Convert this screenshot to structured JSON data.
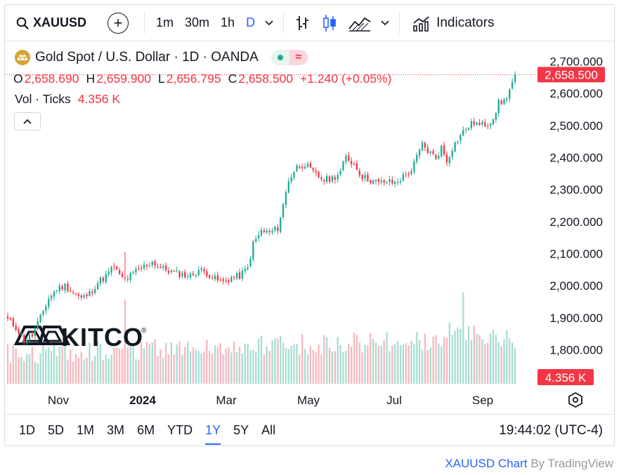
{
  "toolbar": {
    "symbol": "XAUUSD",
    "add_icon": "plus-icon",
    "intervals": [
      "1m",
      "30m",
      "1h",
      "D"
    ],
    "active_interval": "D",
    "indicators_label": "Indicators"
  },
  "legend": {
    "title": "Gold Spot / U.S. Dollar · 1D · OANDA",
    "open_label": "O",
    "open": "2,658.690",
    "high_label": "H",
    "high": "2,659.900",
    "low_label": "L",
    "low": "2,656.795",
    "close_label": "C",
    "close": "2,658.500",
    "change": "+1.240 (+0.05%)",
    "vol_label": "Vol · Ticks",
    "vol_value": "4.356 K"
  },
  "colors": {
    "up": "#22ab94",
    "down": "#f23645",
    "up_vol": "#a8ddd2",
    "down_vol": "#f7b8be",
    "accent": "#2962ff"
  },
  "watermark": "KITCO",
  "ranges": [
    "1D",
    "5D",
    "1M",
    "3M",
    "6M",
    "YTD",
    "1Y",
    "5Y",
    "All"
  ],
  "active_range": "1Y",
  "clock": "19:44:02 (UTC-4)",
  "footer": {
    "link": "XAUUSD Chart",
    "by": "By TradingView"
  },
  "chart_data": {
    "type": "candlestick",
    "title": "Gold Spot / U.S. Dollar · 1D · OANDA",
    "x_tick_labels": [
      "Nov",
      "2024",
      "Mar",
      "May",
      "Jul",
      "Sep"
    ],
    "y_tick_labels": [
      "2,700.000",
      "2,600.000",
      "2,500.000",
      "2,400.000",
      "2,300.000",
      "2,200.000",
      "2,100.000",
      "2,000.000",
      "1,900.000",
      "1,800.000"
    ],
    "ylim": [
      1720,
      2760
    ],
    "last_price_label": "2,658.500",
    "last_volume_label": "4.356 K",
    "close_anchors": [
      [
        0,
        1895
      ],
      [
        3,
        1870
      ],
      [
        6,
        1830
      ],
      [
        9,
        1845
      ],
      [
        12,
        1900
      ],
      [
        15,
        1960
      ],
      [
        18,
        1990
      ],
      [
        21,
        2000
      ],
      [
        24,
        1980
      ],
      [
        27,
        1960
      ],
      [
        30,
        1975
      ],
      [
        33,
        2010
      ],
      [
        36,
        2030
      ],
      [
        39,
        2060
      ],
      [
        41,
        2030
      ],
      [
        43,
        2020
      ],
      [
        45,
        2030
      ],
      [
        47,
        2045
      ],
      [
        50,
        2060
      ],
      [
        53,
        2075
      ],
      [
        55,
        2060
      ],
      [
        58,
        2050
      ],
      [
        61,
        2040
      ],
      [
        64,
        2035
      ],
      [
        67,
        2030
      ],
      [
        70,
        2050
      ],
      [
        73,
        2040
      ],
      [
        76,
        2020
      ],
      [
        79,
        2010
      ],
      [
        82,
        2025
      ],
      [
        85,
        2030
      ],
      [
        88,
        2055
      ],
      [
        90,
        2130
      ],
      [
        93,
        2170
      ],
      [
        96,
        2165
      ],
      [
        99,
        2180
      ],
      [
        101,
        2250
      ],
      [
        103,
        2330
      ],
      [
        106,
        2370
      ],
      [
        109,
        2380
      ],
      [
        111,
        2360
      ],
      [
        113,
        2345
      ],
      [
        116,
        2330
      ],
      [
        119,
        2335
      ],
      [
        122,
        2355
      ],
      [
        124,
        2400
      ],
      [
        127,
        2380
      ],
      [
        130,
        2340
      ],
      [
        133,
        2330
      ],
      [
        136,
        2320
      ],
      [
        139,
        2325
      ],
      [
        142,
        2320
      ],
      [
        145,
        2340
      ],
      [
        148,
        2360
      ],
      [
        150,
        2400
      ],
      [
        152,
        2440
      ],
      [
        154,
        2420
      ],
      [
        157,
        2400
      ],
      [
        159,
        2430
      ],
      [
        161,
        2390
      ],
      [
        163,
        2430
      ],
      [
        166,
        2470
      ],
      [
        168,
        2490
      ],
      [
        171,
        2510
      ],
      [
        173,
        2500
      ],
      [
        176,
        2505
      ],
      [
        178,
        2525
      ],
      [
        180,
        2570
      ],
      [
        182,
        2575
      ],
      [
        184,
        2610
      ],
      [
        186,
        2658.5
      ]
    ],
    "volume_label": "Vol · Ticks"
  }
}
